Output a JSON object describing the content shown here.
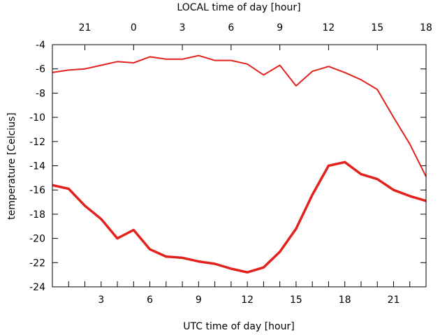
{
  "chart_data": {
    "type": "line",
    "xlabel": "UTC time of day [hour]",
    "x2label": "LOCAL time of day [hour]",
    "ylabel": "temperature [Celcius]",
    "xlim": [
      0,
      23
    ],
    "ylim": [
      -24,
      -4
    ],
    "x_ticks": [
      3,
      6,
      9,
      12,
      15,
      18,
      21
    ],
    "x2_ticks": [
      {
        "x": 2,
        "label": "21"
      },
      {
        "x": 5,
        "label": "0"
      },
      {
        "x": 8,
        "label": "3"
      },
      {
        "x": 11,
        "label": "6"
      },
      {
        "x": 14,
        "label": "9"
      },
      {
        "x": 17,
        "label": "12"
      },
      {
        "x": 20,
        "label": "15"
      },
      {
        "x": 23,
        "label": "18"
      }
    ],
    "y_ticks": [
      -4,
      -6,
      -8,
      -10,
      -12,
      -14,
      -16,
      -18,
      -20,
      -22,
      -24
    ],
    "grid": false,
    "series": [
      {
        "color": "#e3211c",
        "line_weight": "thin",
        "x": [
          0,
          1,
          2,
          3,
          4,
          5,
          6,
          7,
          8,
          9,
          10,
          11,
          12,
          13,
          14,
          15,
          16,
          17,
          18,
          19,
          20,
          21,
          22,
          23
        ],
        "values": [
          -6.3,
          -6.1,
          -6.0,
          -5.7,
          -5.4,
          -5.5,
          -5.0,
          -5.2,
          -5.2,
          -4.9,
          -5.3,
          -5.3,
          -5.6,
          -6.5,
          -5.7,
          -7.4,
          -6.2,
          -5.8,
          -6.3,
          -6.9,
          -7.7,
          -10.0,
          -12.2,
          -14.9
        ]
      },
      {
        "color": "#e3211c",
        "line_weight": "thick",
        "x": [
          0,
          1,
          2,
          3,
          4,
          5,
          6,
          7,
          8,
          9,
          10,
          11,
          12,
          13,
          14,
          15,
          16,
          17,
          18,
          19,
          20,
          21,
          22,
          23
        ],
        "values": [
          -15.6,
          -15.9,
          -17.3,
          -18.4,
          -20.0,
          -19.3,
          -20.9,
          -21.5,
          -21.6,
          -21.9,
          -22.1,
          -22.5,
          -22.8,
          -22.4,
          -21.1,
          -19.2,
          -16.4,
          -14.0,
          -13.7,
          -14.7,
          -15.1,
          -16.0,
          -16.5,
          -16.9
        ]
      }
    ]
  }
}
